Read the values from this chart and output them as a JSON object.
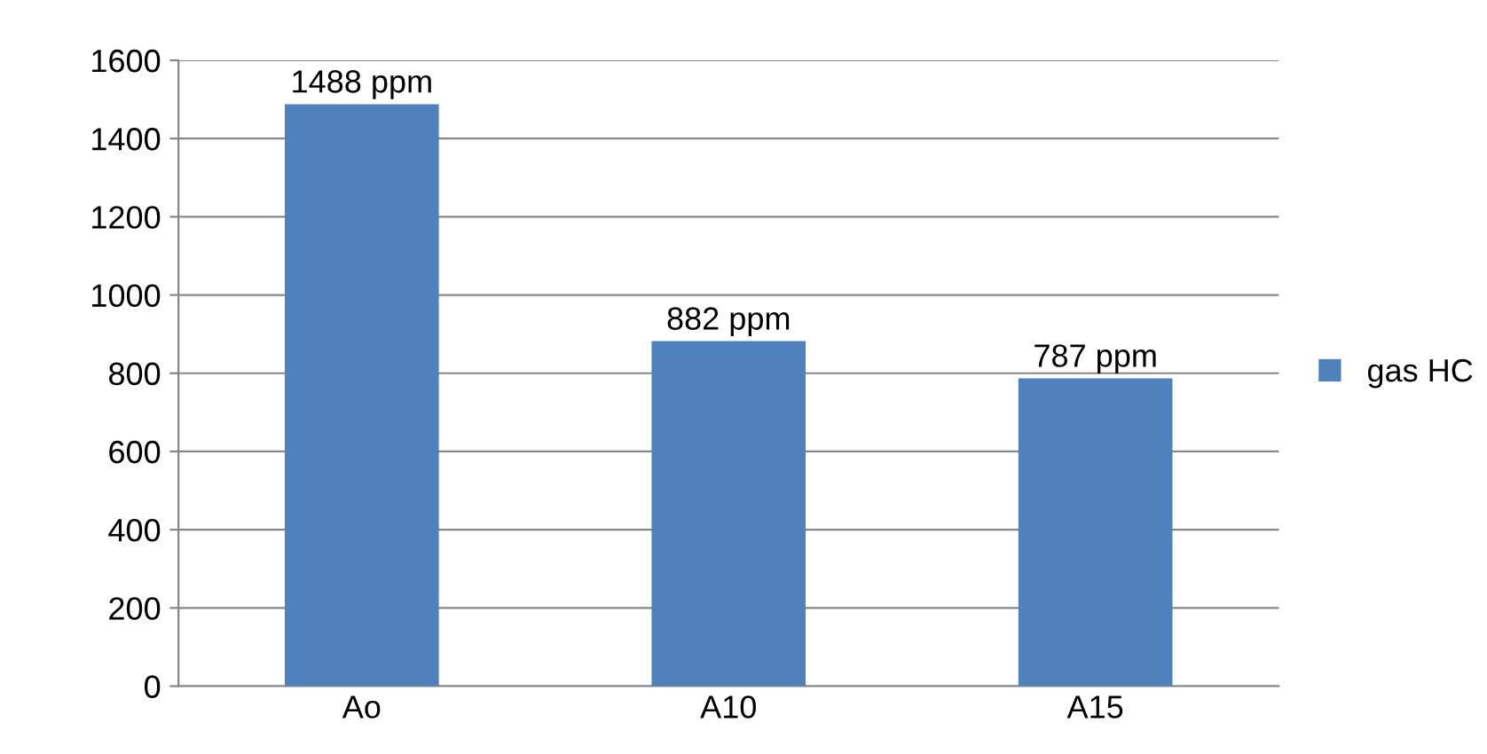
{
  "chart_data": {
    "type": "bar",
    "categories": [
      "Ao",
      "A10",
      "A15"
    ],
    "series": [
      {
        "name": "gas HC",
        "color": "#4f81bd",
        "values": [
          1488,
          882,
          787
        ],
        "value_labels": [
          "1488 ppm",
          "882 ppm",
          "787 ppm"
        ]
      }
    ],
    "ylim": [
      0,
      1600
    ],
    "yticks": [
      0,
      200,
      400,
      600,
      800,
      1000,
      1200,
      1400,
      1600
    ],
    "grid": "y",
    "legend": "right"
  }
}
